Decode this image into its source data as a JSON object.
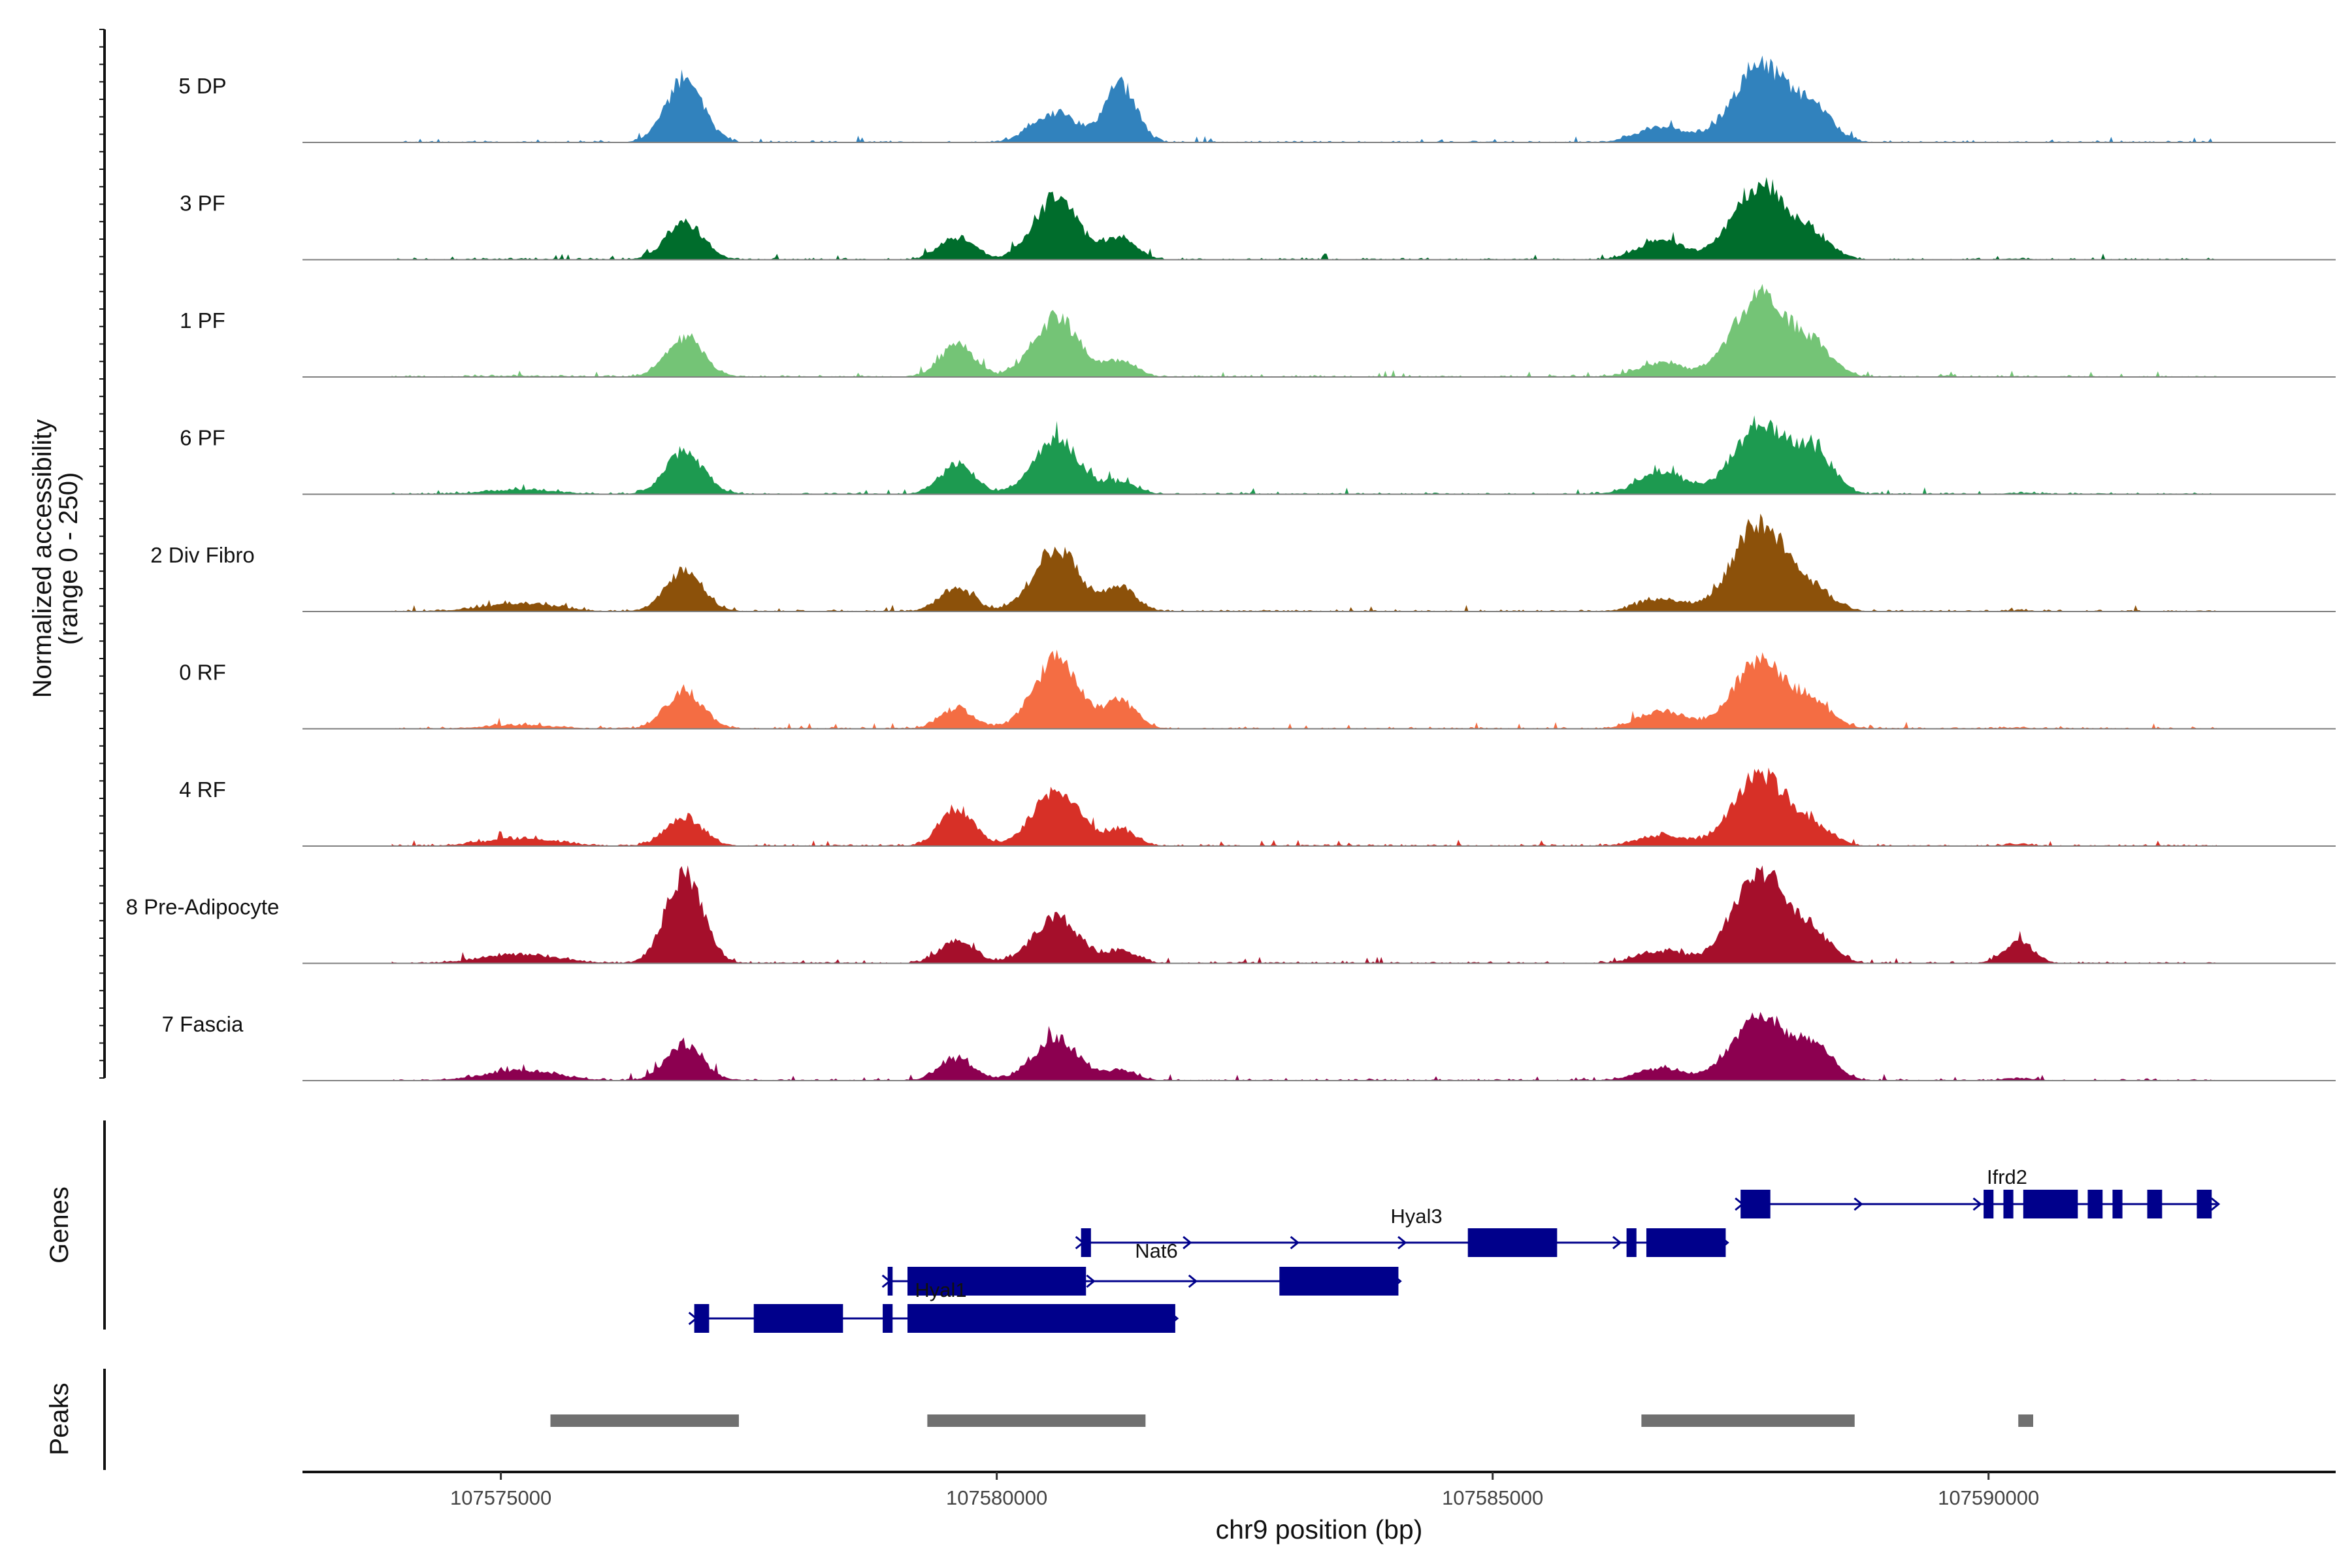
{
  "chart_data": {
    "type": "area",
    "title": "",
    "chromosome": "chr9",
    "xlabel": "chr9 position (bp)",
    "ylabel": "Normalized accessibility",
    "ylabel_sub": "(range 0 - 250)",
    "xlim": [
      107573000,
      107593500
    ],
    "ylim": [
      0,
      250
    ],
    "xticks": [
      107575000,
      107580000,
      107585000,
      107590000
    ],
    "xtick_labels": [
      "107575000",
      "107580000",
      "107585000",
      "107590000"
    ],
    "track_range": [
      107573900,
      107592300
    ],
    "peak_positions": [
      107575200,
      107576850,
      107579600,
      107580600,
      107581250,
      107586700,
      107587700,
      107588250,
      107590300
    ],
    "tracks": [
      {
        "name": "5 DP",
        "color": "#3182bd",
        "peaks": [
          0.4,
          160,
          0,
          75,
          145,
          40,
          200,
          80,
          0
        ]
      },
      {
        "name": "3 PF",
        "color": "#006d2c",
        "peaks": [
          1,
          95,
          55,
          155,
          55,
          48,
          190,
          50,
          1
        ]
      },
      {
        "name": "1 PF",
        "color": "#74c476",
        "peaks": [
          2,
          100,
          80,
          150,
          40,
          35,
          210,
          70,
          1
        ]
      },
      {
        "name": "6 PF",
        "color": "#1d9a50",
        "peaks": [
          10,
          110,
          75,
          140,
          30,
          55,
          175,
          100,
          3
        ]
      },
      {
        "name": "2 Div Fibro",
        "color": "#8c510a",
        "peaks": [
          20,
          105,
          60,
          160,
          60,
          30,
          230,
          45,
          2
        ]
      },
      {
        "name": "0 RF",
        "color": "#f46d43",
        "peaks": [
          8,
          95,
          50,
          175,
          70,
          45,
          170,
          55,
          2
        ]
      },
      {
        "name": "4 RF",
        "color": "#d73027",
        "peaks": [
          18,
          70,
          95,
          145,
          40,
          25,
          180,
          40,
          4
        ]
      },
      {
        "name": "8 Pre-Adipocyte",
        "color": "#a50f2b",
        "peaks": [
          22,
          230,
          55,
          115,
          30,
          30,
          240,
          60,
          55
        ]
      },
      {
        "name": "7 Fascia",
        "color": "#8c0050",
        "peaks": [
          25,
          90,
          55,
          105,
          25,
          30,
          165,
          80,
          5
        ]
      }
    ],
    "genes_title": "Genes",
    "genes": [
      {
        "name": "Ifrd2",
        "strand": "+",
        "start": 107587500,
        "end": 107592300,
        "exons": [
          [
            107587500,
            107587800
          ],
          [
            107589950,
            107590050
          ],
          [
            107590150,
            107590250
          ],
          [
            107590350,
            107590900
          ],
          [
            107591000,
            107591150
          ],
          [
            107591250,
            107591350
          ],
          [
            107591600,
            107591750
          ],
          [
            107592100,
            107592250
          ]
        ]
      },
      {
        "name": "Hyal3",
        "strand": "+",
        "start": 107580850,
        "end": 107587350,
        "exons": [
          [
            107580850,
            107580950
          ],
          [
            107584750,
            107585650
          ],
          [
            107586350,
            107586450
          ],
          [
            107586550,
            107587350
          ]
        ]
      },
      {
        "name": "Nat6",
        "strand": "+",
        "start": 107578900,
        "end": 107584050,
        "exons": [
          [
            107578900,
            107578950
          ],
          [
            107579100,
            107580900
          ],
          [
            107582850,
            107584050
          ]
        ]
      },
      {
        "name": "Hyal1",
        "strand": "+",
        "start": 107576950,
        "end": 107581800,
        "exons": [
          [
            107576950,
            107577100
          ],
          [
            107577550,
            107578450
          ],
          [
            107578850,
            107578950
          ],
          [
            107579100,
            107581800
          ]
        ]
      }
    ],
    "peaks_title": "Peaks",
    "peak_regions": [
      [
        107575500,
        107577400
      ],
      [
        107579300,
        107581500
      ],
      [
        107586500,
        107588650
      ],
      [
        107590300,
        107590450
      ]
    ]
  }
}
